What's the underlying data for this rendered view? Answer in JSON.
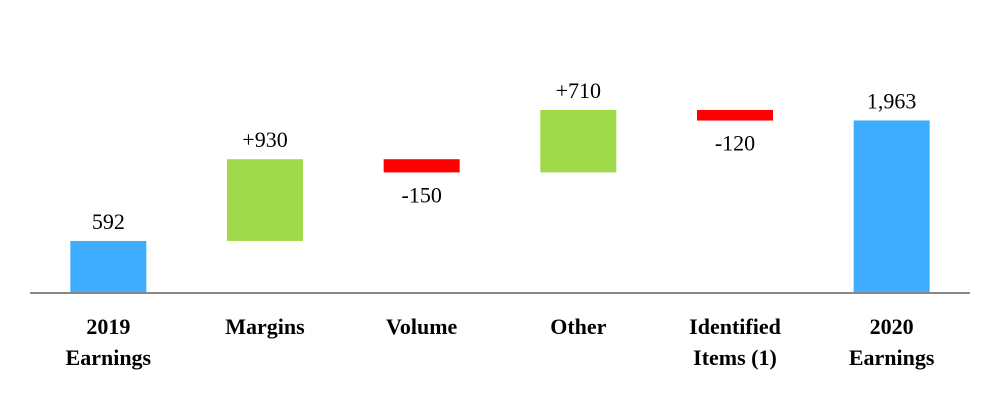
{
  "chart_data": {
    "type": "waterfall",
    "categories": [
      "2019 Earnings",
      "Margins",
      "Volume",
      "Other",
      "Identified Items (1)",
      "2020 Earnings"
    ],
    "values": [
      592,
      930,
      -150,
      710,
      -120,
      1963
    ],
    "value_labels": [
      "592",
      "+930",
      "-150",
      "+710",
      "-120",
      "1,963"
    ],
    "total_color": "#3fadff",
    "increase_color": "#a0d94a",
    "decrease_color": "#ff0000"
  }
}
